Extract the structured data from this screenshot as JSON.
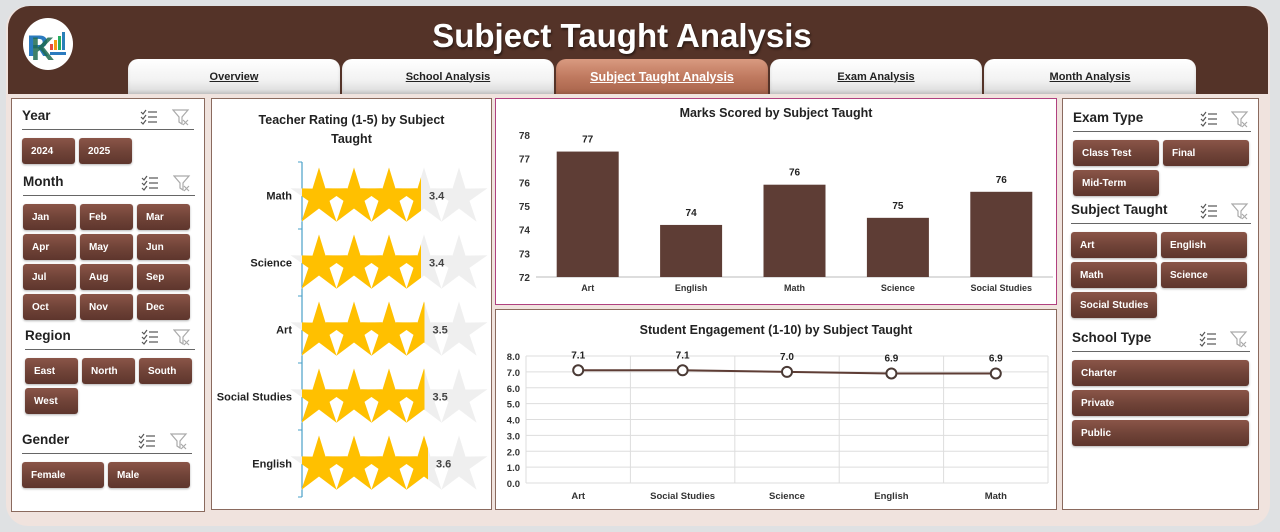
{
  "header": {
    "title": "Subject Taught Analysis",
    "logo": "rk-logo"
  },
  "tabs": [
    {
      "label": "Overview",
      "active": false
    },
    {
      "label": "School Analysis",
      "active": false
    },
    {
      "label": "Subject Taught Analysis",
      "active": true
    },
    {
      "label": "Exam Analysis",
      "active": false
    },
    {
      "label": "Month Analysis",
      "active": false
    }
  ],
  "left_slicers": {
    "year": {
      "title": "Year",
      "items": [
        "2024",
        "2025"
      ]
    },
    "month": {
      "title": "Month",
      "items": [
        "Jan",
        "Feb",
        "Mar",
        "Apr",
        "May",
        "Jun",
        "Jul",
        "Aug",
        "Sep",
        "Oct",
        "Nov",
        "Dec"
      ]
    },
    "region": {
      "title": "Region",
      "items": [
        "East",
        "North",
        "South",
        "West"
      ]
    },
    "gender": {
      "title": "Gender",
      "items": [
        "Female",
        "Male"
      ]
    }
  },
  "right_slicers": {
    "exam_type": {
      "title": "Exam Type",
      "items": [
        "Class Test",
        "Final",
        "Mid-Term"
      ]
    },
    "subject_taught": {
      "title": "Subject Taught",
      "items": [
        "Art",
        "English",
        "Math",
        "Science",
        "Social Studies"
      ]
    },
    "school_type": {
      "title": "School Type",
      "items": [
        "Charter",
        "Private",
        "Public"
      ]
    }
  },
  "slicer_icons": {
    "multi_select": "multi-select-icon",
    "clear_filter": "clear-filter-icon"
  },
  "colors": {
    "header_bg": "#543328",
    "button_bg": "#6f4237",
    "bar_fill": "#5e3d35",
    "star_fill": "#ffc000",
    "star_empty": "#efefef",
    "active_tab": "#c07a60"
  },
  "chart_data": [
    {
      "type": "bar",
      "subtype": "pictograph-stars",
      "title": "Teacher Rating (1-5) by Subject Taught",
      "orientation": "horizontal",
      "categories": [
        "Math",
        "Science",
        "Art",
        "Social Studies",
        "English"
      ],
      "values": [
        3.4,
        3.4,
        3.5,
        3.5,
        3.6
      ],
      "max": 5,
      "labels": [
        "3.4",
        "3.4",
        "3.5",
        "3.5",
        "3.6"
      ]
    },
    {
      "type": "bar",
      "title": "Marks Scored by Subject Taught",
      "categories": [
        "Art",
        "English",
        "Math",
        "Science",
        "Social Studies"
      ],
      "values": [
        77.3,
        74.2,
        75.9,
        74.5,
        75.6
      ],
      "labels": [
        "77",
        "74",
        "76",
        "75",
        "76"
      ],
      "ylim": [
        72,
        78
      ],
      "yticks": [
        "72",
        "73",
        "74",
        "75",
        "76",
        "77",
        "78"
      ],
      "xlabel": "",
      "ylabel": "",
      "grid": false
    },
    {
      "type": "line",
      "title": "Student Engagement (1-10) by Subject Taught",
      "categories": [
        "Art",
        "Social Studies",
        "Science",
        "English",
        "Math"
      ],
      "values": [
        7.1,
        7.1,
        7.0,
        6.9,
        6.9
      ],
      "labels": [
        "7.1",
        "7.1",
        "7.0",
        "6.9",
        "6.9"
      ],
      "ylim": [
        0,
        8
      ],
      "yticks": [
        "0.0",
        "1.0",
        "2.0",
        "3.0",
        "4.0",
        "5.0",
        "6.0",
        "7.0",
        "8.0"
      ],
      "xlabel": "",
      "ylabel": "",
      "grid": true
    }
  ]
}
